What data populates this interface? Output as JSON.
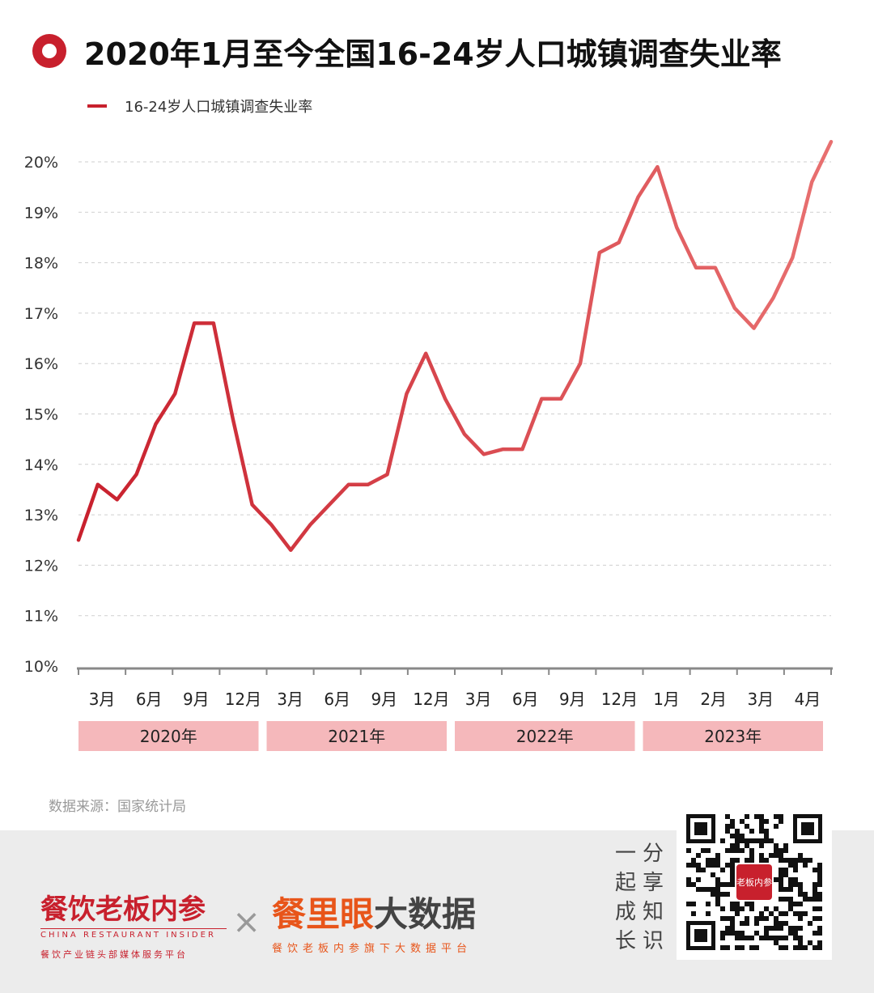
{
  "header": {
    "title": "2020年1月至今全国16-24岁人口城镇调查失业率"
  },
  "legend": {
    "label": "16-24岁人口城镇调查失业率",
    "color": "#c8202d"
  },
  "chart_data": {
    "type": "line",
    "title": "2020年1月至今全国16-24岁人口城镇调查失业率",
    "ylim": [
      10,
      20
    ],
    "y_tick_labels": [
      "10%",
      "11%",
      "12%",
      "13%",
      "14%",
      "15%",
      "16%",
      "17%",
      "18%",
      "19%",
      "20%"
    ],
    "grid": true,
    "legend_position": "top-left",
    "x_tick_labels": [
      "3月",
      "6月",
      "9月",
      "12月",
      "3月",
      "6月",
      "9月",
      "12月",
      "3月",
      "6月",
      "9月",
      "12月",
      "1月",
      "2月",
      "3月",
      "4月"
    ],
    "year_groups": [
      "2020年",
      "2021年",
      "2022年",
      "2023年"
    ],
    "series": [
      {
        "name": "16-24岁人口城镇调查失业率",
        "color_start": "#c8202d",
        "color_end": "#e87070",
        "x": [
          "2020-01",
          "2020-02",
          "2020-03",
          "2020-04",
          "2020-05",
          "2020-06",
          "2020-07",
          "2020-08",
          "2020-09",
          "2020-10",
          "2020-11",
          "2020-12",
          "2021-01",
          "2021-02",
          "2021-03",
          "2021-04",
          "2021-05",
          "2021-06",
          "2021-07",
          "2021-08",
          "2021-09",
          "2021-10",
          "2021-11",
          "2021-12",
          "2022-01",
          "2022-02",
          "2022-03",
          "2022-04",
          "2022-05",
          "2022-06",
          "2022-07",
          "2022-08",
          "2022-09",
          "2022-10",
          "2022-11",
          "2022-12",
          "2023-01",
          "2023-02",
          "2023-03",
          "2023-04"
        ],
        "values": [
          12.5,
          13.6,
          13.3,
          13.8,
          14.8,
          15.4,
          16.8,
          16.8,
          14.9,
          13.2,
          12.8,
          12.3,
          12.8,
          13.2,
          13.6,
          13.6,
          13.8,
          15.4,
          16.2,
          15.3,
          14.6,
          14.2,
          14.3,
          14.3,
          15.3,
          15.3,
          16.0,
          18.2,
          18.4,
          19.3,
          19.9,
          18.7,
          17.9,
          17.9,
          17.1,
          16.7,
          17.3,
          18.1,
          19.6,
          20.4
        ]
      }
    ]
  },
  "source": "数据来源：国家统计局",
  "footer": {
    "brand1": {
      "name": "餐饮老板内参",
      "english": "CHINA RESTAURANT INSIDER",
      "tagline": "餐饮产业链头部媒体服务平台"
    },
    "brand2": {
      "name_accent": "餐里眼",
      "name_rest": "大数据",
      "tagline": "餐饮老板内参旗下大数据平台"
    },
    "slogan_left": [
      "一",
      "起",
      "成",
      "长"
    ],
    "slogan_right": [
      "分",
      "享",
      "知",
      "识"
    ],
    "qr_badge": "老板内参"
  }
}
